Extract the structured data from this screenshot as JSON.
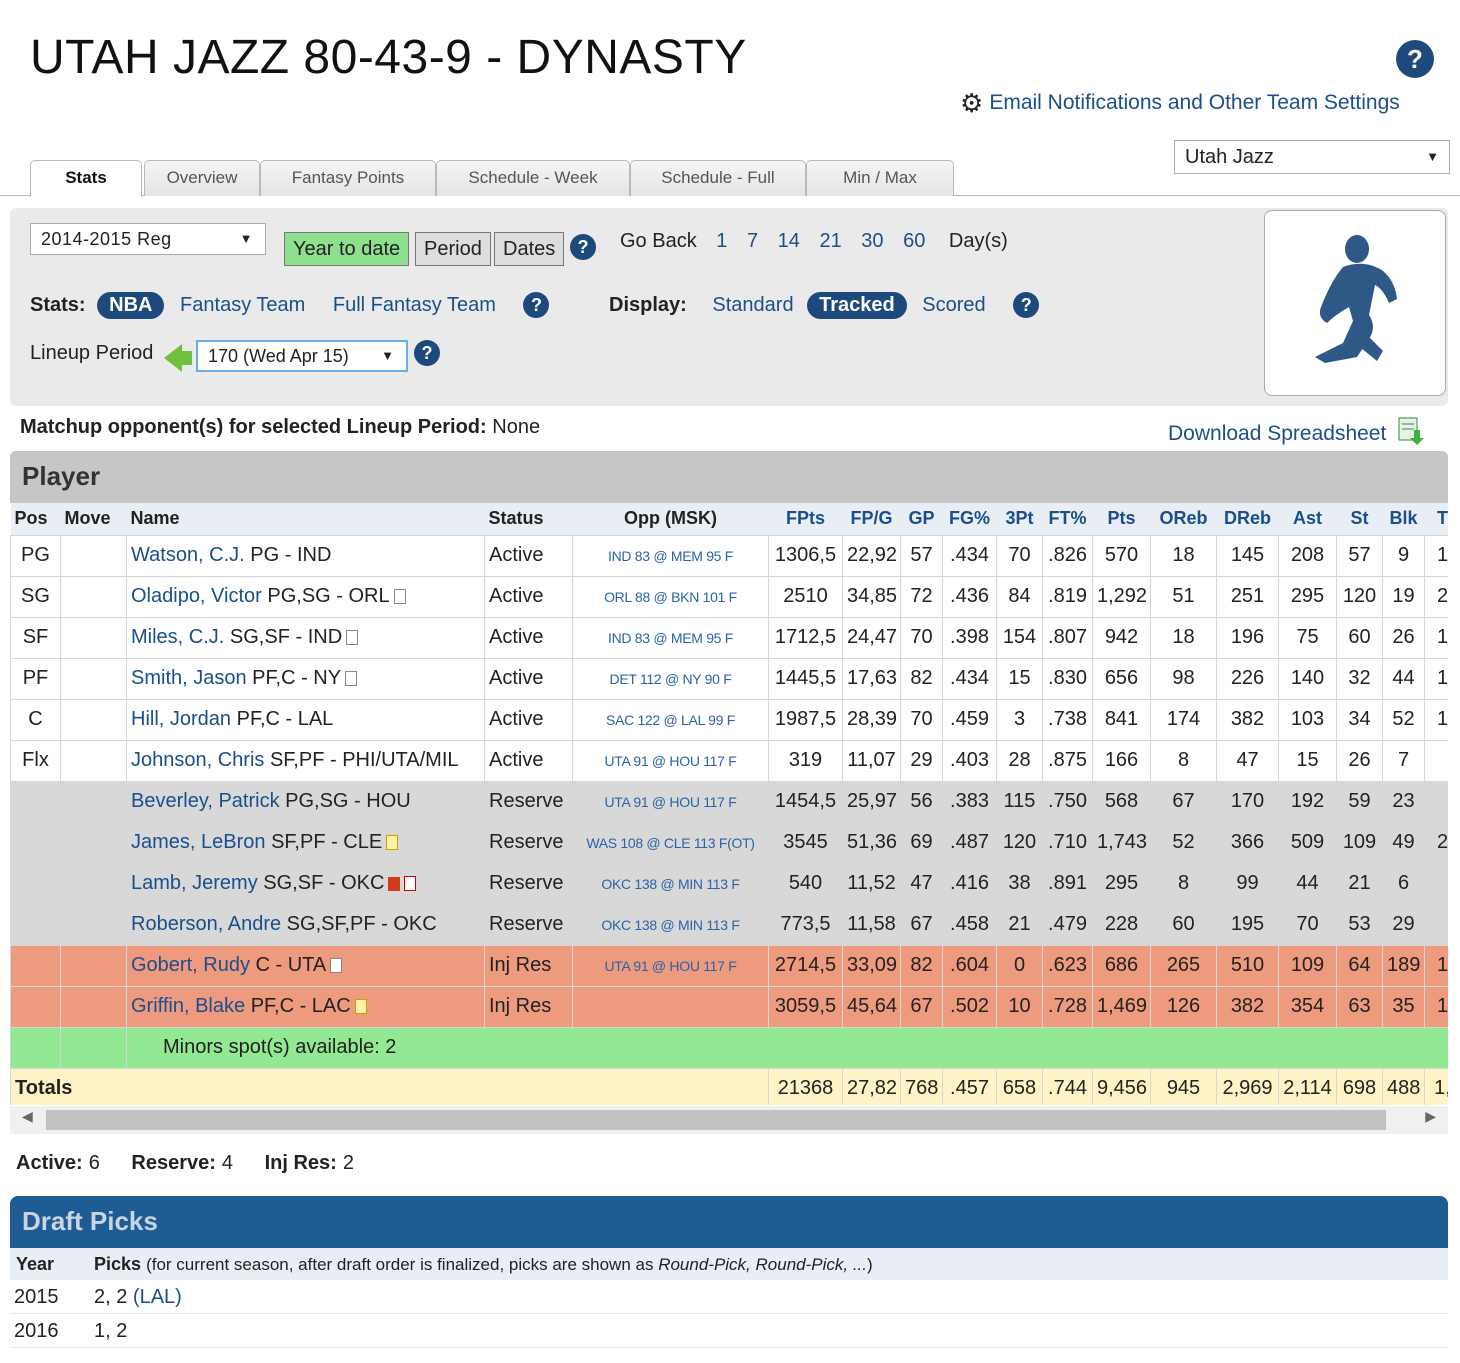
{
  "header": {
    "title": "UTAH JAZZ 80-43-9 - DYNASTY",
    "help_label": "?",
    "settings_link": "Email Notifications and Other Team Settings",
    "team_select_value": "Utah Jazz"
  },
  "tabs": [
    "Stats",
    "Overview",
    "Fantasy Points",
    "Schedule - Week",
    "Schedule - Full",
    "Min / Max"
  ],
  "filters": {
    "season": "2014-2015 Reg",
    "range_options": [
      "Year to date",
      "Period",
      "Dates"
    ],
    "go_back_label": "Go Back",
    "go_back_days": [
      "1",
      "7",
      "14",
      "21",
      "30",
      "60"
    ],
    "days_label": "Day(s)",
    "stats_label": "Stats:",
    "stats_options": [
      "NBA",
      "Fantasy Team",
      "Full Fantasy Team"
    ],
    "display_label": "Display:",
    "display_options": [
      "Standard",
      "Tracked",
      "Scored"
    ],
    "lineup_period_label": "Lineup Period",
    "lineup_period_value": "170 (Wed Apr 15)"
  },
  "matchup": {
    "label": "Matchup opponent(s) for selected Lineup Period:",
    "value": "None"
  },
  "download_label": "Download Spreadsheet",
  "player_section_title": "Player",
  "columns": [
    "Pos",
    "Move",
    "Name",
    "Status",
    "Opp (MSK)",
    "FPts",
    "FP/G",
    "GP",
    "FG%",
    "3Pt",
    "FT%",
    "Pts",
    "OReb",
    "DReb",
    "Ast",
    "St",
    "Blk",
    "T"
  ],
  "players": [
    {
      "pos": "PG",
      "name": "Watson, C.J.",
      "info": "PG - IND",
      "status": "Active",
      "opp": "IND 83 @ MEM 95 F",
      "stats": [
        "1306,5",
        "22,92",
        "57",
        ".434",
        "70",
        ".826",
        "570",
        "18",
        "145",
        "208",
        "57",
        "9",
        "1"
      ],
      "type": "active",
      "icon": ""
    },
    {
      "pos": "SG",
      "name": "Oladipo, Victor",
      "info": "PG,SG - ORL",
      "status": "Active",
      "opp": "ORL 88 @ BKN 101 F",
      "stats": [
        "2510",
        "34,85",
        "72",
        ".436",
        "84",
        ".819",
        "1,292",
        "51",
        "251",
        "295",
        "120",
        "19",
        "2"
      ],
      "type": "active",
      "icon": "note"
    },
    {
      "pos": "SF",
      "name": "Miles, C.J.",
      "info": "SG,SF - IND",
      "status": "Active",
      "opp": "IND 83 @ MEM 95 F",
      "stats": [
        "1712,5",
        "24,47",
        "70",
        ".398",
        "154",
        ".807",
        "942",
        "18",
        "196",
        "75",
        "60",
        "26",
        "1"
      ],
      "type": "active",
      "icon": "note"
    },
    {
      "pos": "PF",
      "name": "Smith, Jason",
      "info": "PF,C - NY",
      "status": "Active",
      "opp": "DET 112 @ NY 90 F",
      "stats": [
        "1445,5",
        "17,63",
        "82",
        ".434",
        "15",
        ".830",
        "656",
        "98",
        "226",
        "140",
        "32",
        "44",
        "1"
      ],
      "type": "active",
      "icon": "note"
    },
    {
      "pos": "C",
      "name": "Hill, Jordan",
      "info": "PF,C - LAL",
      "status": "Active",
      "opp": "SAC 122 @ LAL 99 F",
      "stats": [
        "1987,5",
        "28,39",
        "70",
        ".459",
        "3",
        ".738",
        "841",
        "174",
        "382",
        "103",
        "34",
        "52",
        "1"
      ],
      "type": "active",
      "icon": ""
    },
    {
      "pos": "Flx",
      "name": "Johnson, Chris",
      "info": "SF,PF - PHI/UTA/MIL",
      "status": "Active",
      "opp": "UTA 91 @ HOU 117 F",
      "stats": [
        "319",
        "11,07",
        "29",
        ".403",
        "28",
        ".875",
        "166",
        "8",
        "47",
        "15",
        "26",
        "7",
        ""
      ],
      "type": "active",
      "icon": ""
    },
    {
      "pos": "",
      "name": "Beverley, Patrick",
      "info": "PG,SG - HOU",
      "status": "Reserve",
      "opp": "UTA 91 @ HOU 117 F",
      "stats": [
        "1454,5",
        "25,97",
        "56",
        ".383",
        "115",
        ".750",
        "568",
        "67",
        "170",
        "192",
        "59",
        "23",
        ""
      ],
      "type": "reserve",
      "icon": ""
    },
    {
      "pos": "",
      "name": "James, LeBron",
      "info": "SF,PF - CLE",
      "status": "Reserve",
      "opp": "WAS 108 @ CLE 113 F(OT)",
      "stats": [
        "3545",
        "51,36",
        "69",
        ".487",
        "120",
        ".710",
        "1,743",
        "52",
        "366",
        "509",
        "109",
        "49",
        "2"
      ],
      "type": "reserve",
      "icon": "note-yellow"
    },
    {
      "pos": "",
      "name": "Lamb, Jeremy",
      "info": "SG,SF - OKC",
      "status": "Reserve",
      "opp": "OKC 138 @ MIN 113 F",
      "stats": [
        "540",
        "11,52",
        "47",
        ".416",
        "38",
        ".891",
        "295",
        "8",
        "99",
        "44",
        "21",
        "6",
        ""
      ],
      "type": "reserve",
      "icon": "flag-note"
    },
    {
      "pos": "",
      "name": "Roberson, Andre",
      "info": "SG,SF,PF - OKC",
      "status": "Reserve",
      "opp": "OKC 138 @ MIN 113 F",
      "stats": [
        "773,5",
        "11,58",
        "67",
        ".458",
        "21",
        ".479",
        "228",
        "60",
        "195",
        "70",
        "53",
        "29",
        ""
      ],
      "type": "reserve",
      "icon": ""
    },
    {
      "pos": "",
      "name": "Gobert, Rudy",
      "info": "C - UTA",
      "status": "Inj Res",
      "opp": "UTA 91 @ HOU 117 F",
      "stats": [
        "2714,5",
        "33,09",
        "82",
        ".604",
        "0",
        ".623",
        "686",
        "265",
        "510",
        "109",
        "64",
        "189",
        "1"
      ],
      "type": "injres",
      "icon": "note"
    },
    {
      "pos": "",
      "name": "Griffin, Blake",
      "info": "PF,C - LAC",
      "status": "Inj Res",
      "opp": "",
      "stats": [
        "3059,5",
        "45,64",
        "67",
        ".502",
        "10",
        ".728",
        "1,469",
        "126",
        "382",
        "354",
        "63",
        "35",
        "1"
      ],
      "type": "injres",
      "icon": "note-yellow"
    }
  ],
  "minors_text": "Minors spot(s) available: 2",
  "totals": {
    "label": "Totals",
    "stats": [
      "21368",
      "27,82",
      "768",
      ".457",
      "658",
      ".744",
      "9,456",
      "945",
      "2,969",
      "2,114",
      "698",
      "488",
      "1,"
    ]
  },
  "counts": {
    "active_label": "Active:",
    "active": "6",
    "reserve_label": "Reserve:",
    "reserve": "4",
    "injres_label": "Inj Res:",
    "injres": "2"
  },
  "draft": {
    "title": "Draft Picks",
    "year_header": "Year",
    "picks_header": "Picks",
    "picks_note_pre": "(for current season, after draft order is finalized, picks are shown as ",
    "picks_note_em": "Round-Pick, Round-Pick, ...",
    "picks_note_post": ")",
    "rows": [
      {
        "year": "2015",
        "picks": "2, 2",
        "extra": "(LAL)"
      },
      {
        "year": "2016",
        "picks": "1, 2",
        "extra": ""
      }
    ]
  },
  "colors": {
    "brand_blue": "#1d4a7c",
    "link_blue": "#1a4f8b",
    "injured_row": "#ee9a7e",
    "reserve_row": "#d8d8d8",
    "minors_row": "#93e893",
    "totals_row": "#fdf3c7",
    "active_toggle": "#8ee08e"
  }
}
